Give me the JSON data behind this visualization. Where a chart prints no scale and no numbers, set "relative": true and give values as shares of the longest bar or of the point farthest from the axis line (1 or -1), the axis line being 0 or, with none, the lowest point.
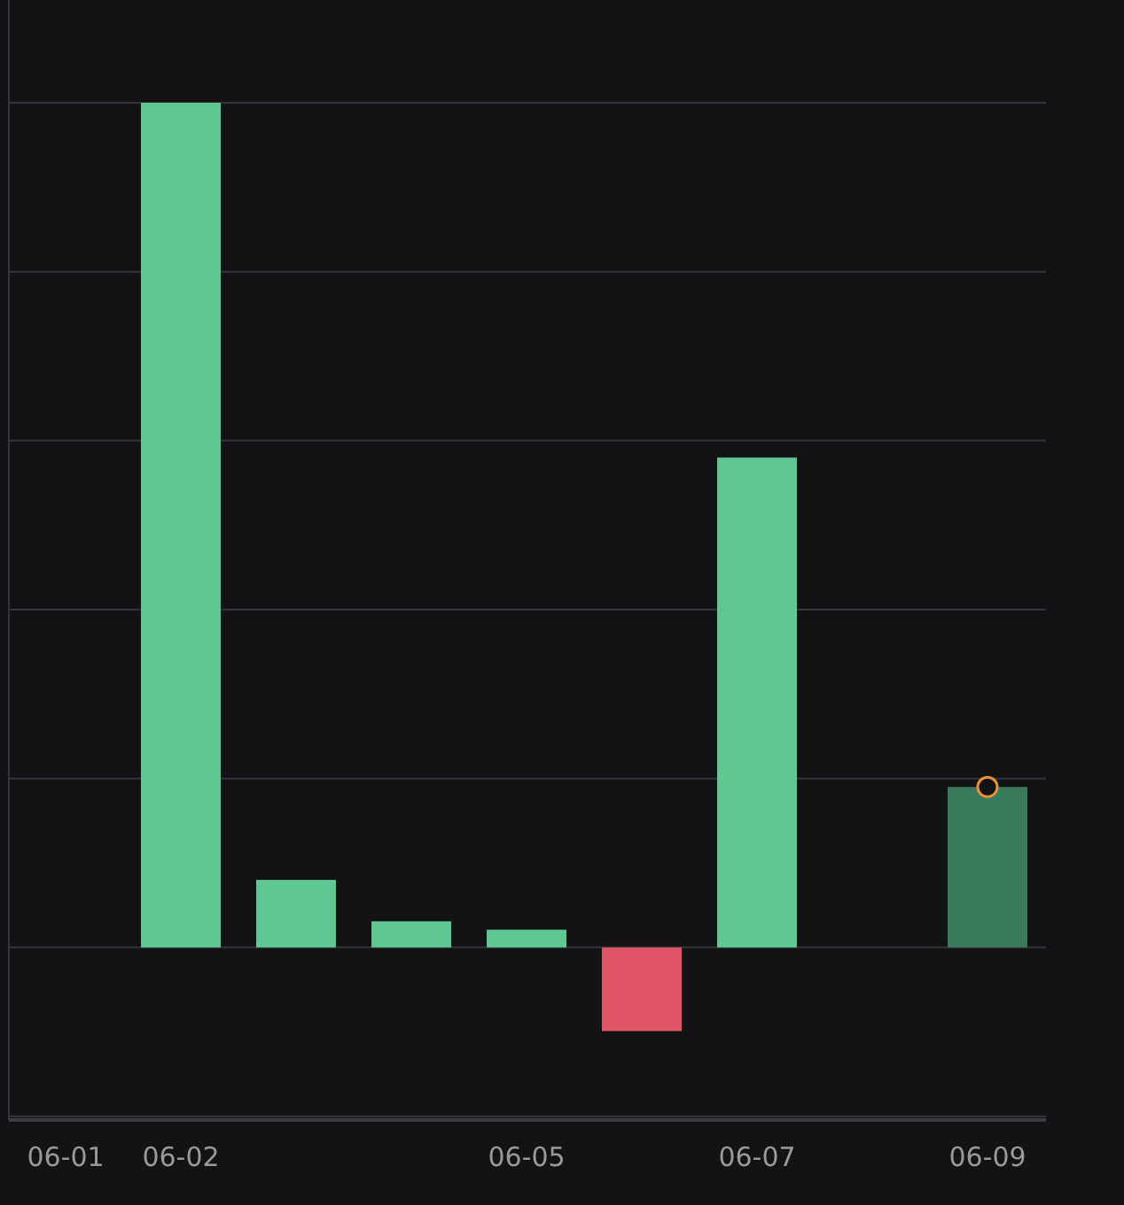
{
  "chart_data": {
    "type": "bar",
    "relative": true,
    "grid": "y",
    "categories": [
      "06-01",
      "06-02",
      null,
      null,
      "06-05",
      null,
      "06-07",
      null,
      "06-09"
    ],
    "series": [
      {
        "values": [
          null,
          1,
          0.08,
          0.031,
          0.021,
          -0.099,
          0.58,
          null,
          0.19
        ],
        "colors": [
          null,
          "#5ec792",
          "#5ec792",
          "#5ec792",
          "#5ec792",
          "#e05666",
          "#5ec792",
          null,
          "#3a7a5c"
        ]
      },
      {
        "type": "scatter",
        "color": "#e8913a",
        "marker": "circle",
        "x": [
          "06-09"
        ],
        "values": [
          0.19
        ]
      }
    ]
  }
}
